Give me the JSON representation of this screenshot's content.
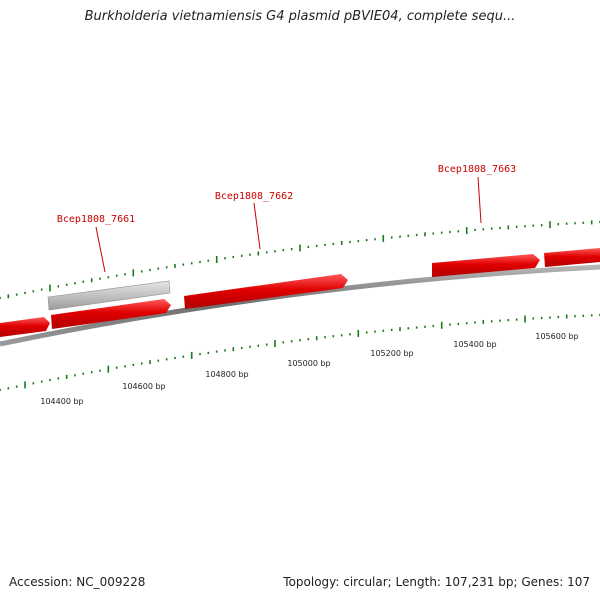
{
  "title": "Burkholderia vietnamiensis G4 plasmid pBVIE04, complete sequ...",
  "accession": "Accession: NC_009228",
  "topology": "Topology: circular; Length: 107,231 bp; Genes: 107",
  "colors": {
    "backbone": "#7a7a7a",
    "gene_forward": "#e00000",
    "gene_other": "#bdbdbd",
    "ticks": "#1a7a1a",
    "gene_label": "#cc0000"
  },
  "gene_labels": [
    "Bcep1808_7661",
    "Bcep1808_7662",
    "Bcep1808_7663"
  ],
  "position_labels": [
    "104400 bp",
    "104600 bp",
    "104800 bp",
    "105000 bp",
    "105200 bp",
    "105400 bp",
    "105600 bp"
  ]
}
